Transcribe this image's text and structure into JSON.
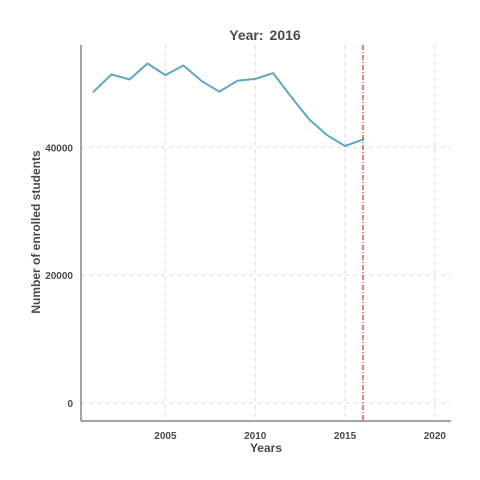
{
  "chart_data": {
    "type": "line",
    "title_prefix": "Year:",
    "title_value": "2016",
    "xlabel": "Years",
    "ylabel": "Number of enrolled students",
    "xlim": [
      2000.3,
      2020.9
    ],
    "ylim": [
      -2800,
      56000
    ],
    "x_ticks": [
      2005,
      2010,
      2015,
      2020
    ],
    "y_ticks": [
      0,
      20000,
      40000
    ],
    "grid": true,
    "series": [
      {
        "color": "#5aa9bf",
        "x": [
          2001,
          2002,
          2003,
          2004,
          2005,
          2006,
          2007,
          2008,
          2009,
          2010,
          2011,
          2012,
          2013,
          2014,
          2015,
          2016
        ],
        "y": [
          48700,
          51400,
          50600,
          53100,
          51300,
          52800,
          50400,
          48700,
          50400,
          50700,
          51600,
          47900,
          44400,
          41900,
          40200,
          41200
        ]
      }
    ],
    "marker_line": {
      "x": 2016,
      "color": "#cc0000",
      "style": "dash-dot"
    }
  }
}
